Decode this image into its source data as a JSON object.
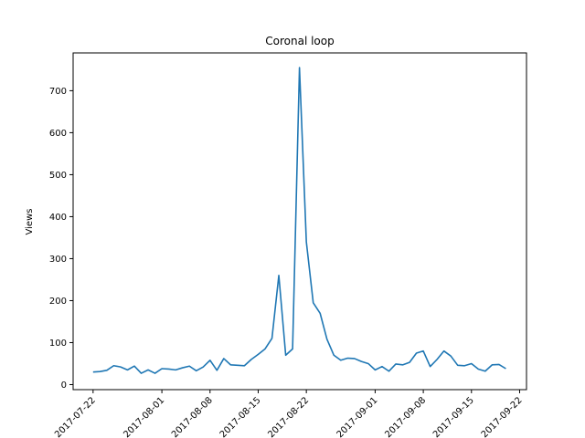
{
  "chart_data": {
    "type": "line",
    "title": "Coronal loop",
    "xlabel": "",
    "ylabel": "Views",
    "x_start": "2017-07-22",
    "ylim": [
      -12,
      790
    ],
    "yticks": [
      0,
      100,
      200,
      300,
      400,
      500,
      600,
      700
    ],
    "xticks": [
      "2017-07-22",
      "2017-08-01",
      "2017-08-08",
      "2017-08-15",
      "2017-08-22",
      "2017-09-01",
      "2017-09-08",
      "2017-09-15",
      "2017-09-22"
    ],
    "grid": false,
    "line_color": "#1f77b4",
    "series": [
      {
        "x": [
          "2017-07-22",
          "2017-07-23",
          "2017-07-24",
          "2017-07-25",
          "2017-07-26",
          "2017-07-27",
          "2017-07-28",
          "2017-07-29",
          "2017-07-30",
          "2017-07-31",
          "2017-08-01",
          "2017-08-02",
          "2017-08-03",
          "2017-08-04",
          "2017-08-05",
          "2017-08-06",
          "2017-08-07",
          "2017-08-08",
          "2017-08-09",
          "2017-08-10",
          "2017-08-11",
          "2017-08-12",
          "2017-08-13",
          "2017-08-14",
          "2017-08-15",
          "2017-08-16",
          "2017-08-17",
          "2017-08-18",
          "2017-08-19",
          "2017-08-20",
          "2017-08-21",
          "2017-08-22",
          "2017-08-23",
          "2017-08-24",
          "2017-08-25",
          "2017-08-26",
          "2017-08-27",
          "2017-08-28",
          "2017-08-29",
          "2017-08-30",
          "2017-08-31",
          "2017-09-01",
          "2017-09-02",
          "2017-09-03",
          "2017-09-04",
          "2017-09-05",
          "2017-09-06",
          "2017-09-07",
          "2017-09-08",
          "2017-09-09",
          "2017-09-10",
          "2017-09-11",
          "2017-09-12",
          "2017-09-13",
          "2017-09-14",
          "2017-09-15",
          "2017-09-16",
          "2017-09-17",
          "2017-09-18",
          "2017-09-19",
          "2017-09-20",
          "2017-09-21"
        ],
        "y": [
          30,
          31,
          34,
          45,
          42,
          35,
          44,
          27,
          35,
          27,
          38,
          37,
          35,
          40,
          44,
          33,
          42,
          58,
          34,
          62,
          47,
          46,
          45,
          60,
          72,
          85,
          110,
          260,
          70,
          85,
          755,
          340,
          195,
          170,
          108,
          70,
          58,
          63,
          62,
          55,
          50,
          35,
          43,
          32,
          49,
          47,
          53,
          75,
          80,
          43,
          60,
          80,
          68,
          46,
          45,
          50,
          37,
          32,
          47,
          48,
          38,
          0
        ]
      }
    ]
  }
}
